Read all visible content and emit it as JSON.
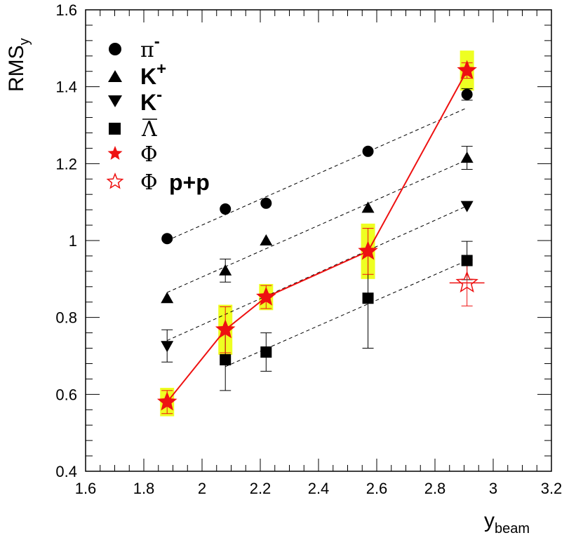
{
  "chart_data": {
    "type": "scatter",
    "xlabel": "y",
    "xlabel_sub": "beam",
    "ylabel": "RMS",
    "ylabel_sub": "y",
    "xlim": [
      1.6,
      3.2
    ],
    "ylim": [
      0.4,
      1.6
    ],
    "x_ticks": [
      1.6,
      1.8,
      2,
      2.2,
      2.4,
      2.6,
      2.8,
      3,
      3.2
    ],
    "x_tick_labels": [
      "1.6",
      "1.8",
      "2",
      "2.2",
      "2.4",
      "2.6",
      "2.8",
      "3",
      "3.2"
    ],
    "y_ticks": [
      0.4,
      0.6,
      0.8,
      1,
      1.2,
      1.4,
      1.6
    ],
    "y_tick_labels": [
      "0.4",
      "0.6",
      "0.8",
      "1",
      "1.2",
      "1.4",
      "1.6"
    ],
    "legend_position": "top-left",
    "series": [
      {
        "name": "pi-minus",
        "label": "π",
        "sup": "-",
        "marker": "circle",
        "color": "#000000",
        "x": [
          1.88,
          2.08,
          2.22,
          2.57,
          2.91
        ],
        "y": [
          1.005,
          1.082,
          1.097,
          1.232,
          1.38
        ],
        "yerr": [
          0,
          0,
          0,
          0,
          0.015
        ],
        "fit_line": {
          "x": [
            1.88,
            2.91
          ],
          "y": [
            1.0,
            1.345
          ]
        }
      },
      {
        "name": "k-plus",
        "label": "K",
        "sup": "+",
        "marker": "triangle-up",
        "color": "#000000",
        "x": [
          1.88,
          2.08,
          2.22,
          2.57,
          2.91
        ],
        "y": [
          0.85,
          0.922,
          1.0,
          1.085,
          1.215
        ],
        "yerr": [
          0,
          0.03,
          0,
          0,
          0.03
        ],
        "fit_line": {
          "x": [
            1.88,
            2.91
          ],
          "y": [
            0.865,
            1.21
          ]
        }
      },
      {
        "name": "k-minus",
        "label": "K",
        "sup": "-",
        "marker": "triangle-down",
        "color": "#000000",
        "x": [
          1.88,
          2.91
        ],
        "y": [
          0.726,
          1.09
        ],
        "yerr": [
          0.042,
          0
        ],
        "fit_line": {
          "x": [
            1.88,
            2.91
          ],
          "y": [
            0.74,
            1.09
          ]
        }
      },
      {
        "name": "anti-lambda",
        "label": "Λ",
        "overline": true,
        "marker": "square",
        "color": "#000000",
        "x": [
          2.08,
          2.22,
          2.57,
          2.91
        ],
        "y": [
          0.69,
          0.71,
          0.85,
          0.948
        ],
        "yerr": [
          0.08,
          0.05,
          0.13,
          0.05
        ],
        "fit_line": {
          "x": [
            2.08,
            2.91
          ],
          "y": [
            0.672,
            0.948
          ]
        }
      },
      {
        "name": "phi",
        "label": "Φ",
        "marker": "star",
        "color": "#ee1111",
        "connect": true,
        "x": [
          1.88,
          2.08,
          2.22,
          2.57,
          2.91
        ],
        "y": [
          0.58,
          0.768,
          0.853,
          0.972,
          1.442
        ],
        "yerr": [
          0.03,
          0.06,
          0.03,
          0.06,
          0.02
        ],
        "syst_band": [
          0.037,
          0.065,
          0.034,
          0.072,
          0.052
        ],
        "syst_color": "#eeff22"
      },
      {
        "name": "phi-pp",
        "label": "Φ",
        "label_extra": "p+p",
        "marker": "star-open",
        "color": "#ee1111",
        "x": [
          2.91
        ],
        "y": [
          0.89
        ],
        "yerr": [
          0.06
        ],
        "xerr": [
          0.06
        ]
      }
    ]
  }
}
